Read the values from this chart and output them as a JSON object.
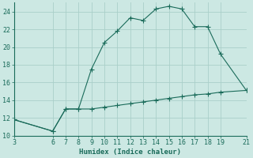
{
  "line1_x": [
    3,
    6,
    7,
    8,
    9,
    10,
    11,
    12,
    13,
    14,
    15,
    16,
    17,
    18,
    19,
    21
  ],
  "line1_y": [
    11.8,
    10.5,
    13.0,
    13.0,
    17.5,
    20.5,
    21.8,
    23.3,
    23.0,
    24.3,
    24.6,
    24.3,
    22.3,
    22.3,
    19.2,
    15.1
  ],
  "line2_x": [
    3,
    6,
    7,
    8,
    9,
    10,
    11,
    12,
    13,
    14,
    15,
    16,
    17,
    18,
    19,
    21
  ],
  "line2_y": [
    11.8,
    10.5,
    13.0,
    13.0,
    13.0,
    13.2,
    13.4,
    13.6,
    13.8,
    14.0,
    14.2,
    14.4,
    14.6,
    14.7,
    14.9,
    15.1
  ],
  "line_color": "#1a6b5a",
  "bg_color": "#cce8e3",
  "grid_color": "#aacfc9",
  "xlabel": "Humidex (Indice chaleur)",
  "xlim": [
    3,
    21
  ],
  "ylim": [
    10,
    25
  ],
  "xticks": [
    3,
    6,
    7,
    8,
    9,
    10,
    11,
    12,
    13,
    14,
    15,
    16,
    17,
    18,
    19,
    21
  ],
  "yticks": [
    10,
    12,
    14,
    16,
    18,
    20,
    22,
    24
  ],
  "xlabel_fontsize": 6.5,
  "tick_fontsize": 6.0,
  "marker_size": 2.5,
  "line_width": 0.8
}
